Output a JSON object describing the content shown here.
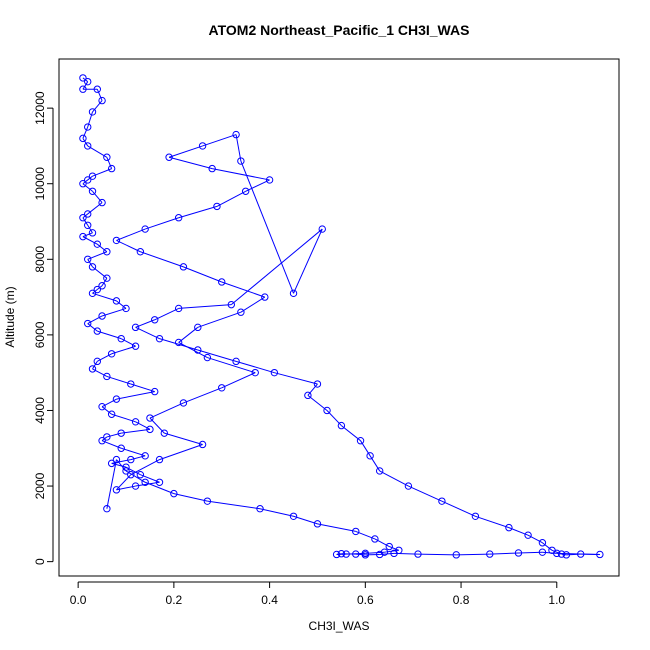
{
  "chart_data": {
    "type": "line",
    "title": "ATOM2 Northeast_Pacific_1 CH3I_WAS",
    "xlabel": "CH3I_WAS",
    "ylabel": "Altitude (m)",
    "xlim": [
      -0.04,
      1.13
    ],
    "ylim": [
      -380,
      13300
    ],
    "xticks": [
      0.0,
      0.2,
      0.4,
      0.6,
      0.8,
      1.0
    ],
    "xtick_labels": [
      "0.0",
      "0.2",
      "0.4",
      "0.6",
      "0.8",
      "1.0"
    ],
    "yticks": [
      0,
      2000,
      4000,
      6000,
      8000,
      10000,
      12000
    ],
    "ytick_labels": [
      "0",
      "2000",
      "4000",
      "6000",
      "8000",
      "10000",
      "12000"
    ],
    "grid": false,
    "legend": "none",
    "series_color": "#0000ff",
    "marker": "open-circle",
    "series": [
      {
        "x": [
          0.01,
          0.02,
          0.01,
          0.04,
          0.05,
          0.03,
          0.02,
          0.01,
          0.02,
          0.06,
          0.07,
          0.03,
          0.02,
          0.01,
          0.03,
          0.05,
          0.02,
          0.01,
          0.02,
          0.03,
          0.01,
          0.04,
          0.06,
          0.02,
          0.03,
          0.06,
          0.05,
          0.04,
          0.03,
          0.08,
          0.1,
          0.05,
          0.02,
          0.04,
          0.09,
          0.12,
          0.07,
          0.04,
          0.03,
          0.06,
          0.11,
          0.16,
          0.08,
          0.05,
          0.07,
          0.12,
          0.15,
          0.09,
          0.06,
          0.05,
          0.09,
          0.14,
          0.11,
          0.07,
          0.1,
          0.13,
          0.17,
          0.12,
          0.08,
          0.11,
          0.17,
          0.26,
          0.18,
          0.15,
          0.22,
          0.3,
          0.37,
          0.27,
          0.21,
          0.25,
          0.34,
          0.39,
          0.3,
          0.22,
          0.13,
          0.08,
          0.14,
          0.21,
          0.29,
          0.35,
          0.4,
          0.28,
          0.19,
          0.26,
          0.33,
          0.34,
          0.45,
          0.51,
          0.32,
          0.21,
          0.16,
          0.12,
          0.17,
          0.25,
          0.33,
          0.41,
          0.5,
          0.48,
          0.52,
          0.55,
          0.59,
          0.61,
          0.63,
          0.69,
          0.76,
          0.83,
          0.9,
          0.94,
          0.97,
          0.99,
          1.01,
          1.02,
          1.05,
          1.09,
          1.0,
          0.97,
          0.92,
          0.86,
          0.79,
          0.71,
          0.66,
          0.63,
          0.6,
          0.58,
          0.55,
          0.54,
          0.56,
          0.6,
          0.64,
          0.67,
          0.65,
          0.62,
          0.58,
          0.5,
          0.45,
          0.38,
          0.27,
          0.2,
          0.14,
          0.1,
          0.08,
          0.06
        ],
        "y": [
          12800,
          12700,
          12500,
          12500,
          12200,
          11900,
          11500,
          11200,
          11000,
          10700,
          10400,
          10200,
          10100,
          10000,
          9800,
          9500,
          9200,
          9100,
          8900,
          8700,
          8600,
          8400,
          8200,
          8000,
          7800,
          7500,
          7300,
          7200,
          7100,
          6900,
          6700,
          6500,
          6300,
          6100,
          5900,
          5700,
          5500,
          5300,
          5100,
          4900,
          4700,
          4500,
          4300,
          4100,
          3900,
          3700,
          3500,
          3400,
          3300,
          3200,
          3000,
          2800,
          2700,
          2600,
          2500,
          2300,
          2100,
          2000,
          1900,
          2300,
          2700,
          3100,
          3400,
          3800,
          4200,
          4600,
          5000,
          5400,
          5800,
          6200,
          6600,
          7000,
          7400,
          7800,
          8200,
          8500,
          8800,
          9100,
          9400,
          9800,
          10100,
          10400,
          10700,
          11000,
          11300,
          10600,
          7100,
          8800,
          6800,
          6700,
          6400,
          6200,
          5900,
          5600,
          5300,
          5000,
          4700,
          4400,
          4000,
          3600,
          3200,
          2800,
          2400,
          2000,
          1600,
          1200,
          900,
          700,
          500,
          300,
          200,
          180,
          200,
          190,
          220,
          250,
          230,
          200,
          180,
          200,
          220,
          190,
          180,
          200,
          210,
          190,
          200,
          220,
          250,
          300,
          400,
          600,
          800,
          1000,
          1200,
          1400,
          1600,
          1800,
          2100,
          2400,
          2700,
          1400
        ]
      }
    ]
  }
}
